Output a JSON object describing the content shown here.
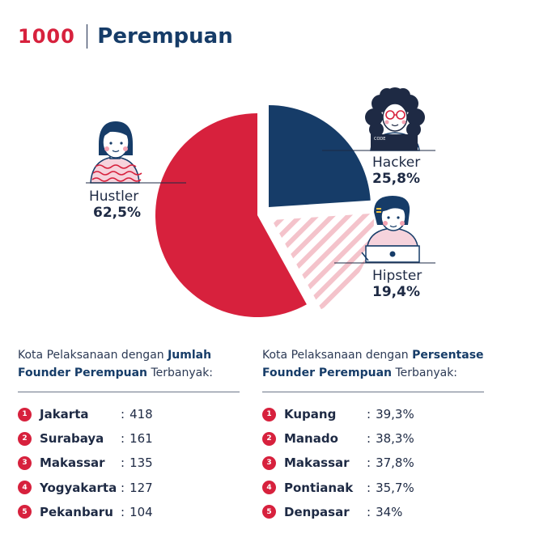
{
  "header": {
    "logo": "1000",
    "title": "Perempuan"
  },
  "chart_data": {
    "type": "pie",
    "title": "Perempuan",
    "slices": [
      {
        "label": "Hustler",
        "value": 62.5,
        "display": "62,5%",
        "color": "#d7213d",
        "pattern": "solid"
      },
      {
        "label": "Hacker",
        "value": 25.8,
        "display": "25,8%",
        "color": "#163c68",
        "pattern": "solid"
      },
      {
        "label": "Hipster",
        "value": 19.4,
        "display": "19,4%",
        "color": "#f2b8c2",
        "pattern": "hatched"
      }
    ]
  },
  "illustrations": {
    "hustler": "woman-avatar-icon",
    "hacker": "curly-hair-woman-laptop-icon",
    "hipster": "woman-laptop-icon",
    "hacker_laptop_text": "CODE"
  },
  "lists": {
    "left": {
      "intro_pre": "Kota Pelaksanaan dengan ",
      "intro_bold": "Jumlah Founder Perempuan",
      "intro_post": " Terbanyak:",
      "items": [
        {
          "rank": "1",
          "city": "Jakarta",
          "value": "418"
        },
        {
          "rank": "2",
          "city": "Surabaya",
          "value": "161"
        },
        {
          "rank": "3",
          "city": "Makassar",
          "value": "135"
        },
        {
          "rank": "4",
          "city": "Yogyakarta",
          "value": "127"
        },
        {
          "rank": "5",
          "city": "Pekanbaru",
          "value": "104"
        }
      ]
    },
    "right": {
      "intro_pre": "Kota Pelaksanaan dengan ",
      "intro_bold": "Persentase Founder Perempuan",
      "intro_post": " Terbanyak:",
      "items": [
        {
          "rank": "1",
          "city": "Kupang",
          "value": "39,3%"
        },
        {
          "rank": "2",
          "city": "Manado",
          "value": "38,3%"
        },
        {
          "rank": "3",
          "city": "Makassar",
          "value": "37,8%"
        },
        {
          "rank": "4",
          "city": "Pontianak",
          "value": "35,7%"
        },
        {
          "rank": "5",
          "city": "Denpasar",
          "value": "34%"
        }
      ]
    },
    "colon": ":"
  }
}
